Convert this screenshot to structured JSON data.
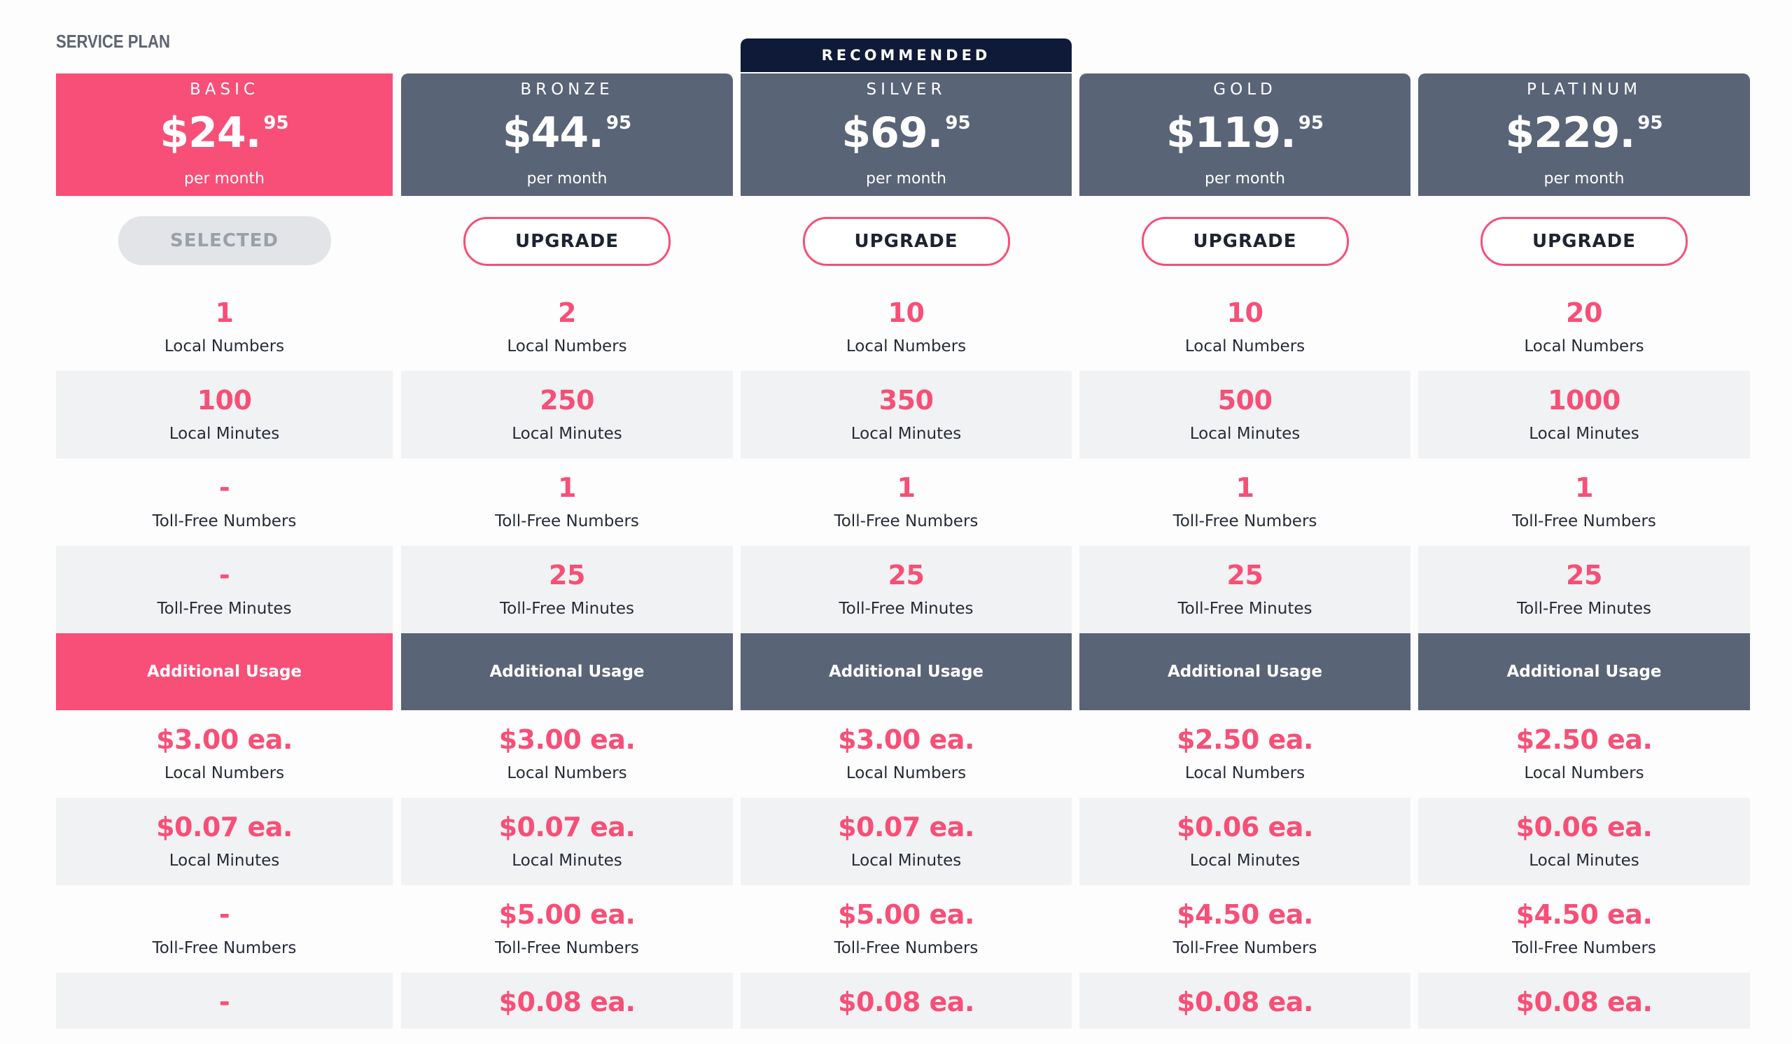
{
  "section_title": "SERVICE PLAN",
  "recommended_label": "RECOMMENDED",
  "per_month": "per month",
  "usage_header": "Additional Usage",
  "labels": {
    "local_numbers": "Local Numbers",
    "local_minutes": "Local Minutes",
    "toll_free_numbers": "Toll-Free Numbers",
    "toll_free_minutes": "Toll-Free Minutes"
  },
  "colors": {
    "accent": "#f74f77",
    "header": "#5a6477",
    "recommended": "#0e1a38",
    "row_alt": "#f1f2f3"
  },
  "plans": [
    {
      "name": "BASIC",
      "price_main": "$24.",
      "price_cents": "95",
      "button": "SELECTED",
      "selected": true,
      "local_numbers": "1",
      "local_minutes": "100",
      "toll_free_numbers": "-",
      "toll_free_minutes": "-",
      "usage_local_numbers": "$3.00 ea.",
      "usage_local_minutes": "$0.07 ea.",
      "usage_toll_free_numbers": "-",
      "usage_toll_free_minutes": "-"
    },
    {
      "name": "BRONZE",
      "price_main": "$44.",
      "price_cents": "95",
      "button": "UPGRADE",
      "selected": false,
      "local_numbers": "2",
      "local_minutes": "250",
      "toll_free_numbers": "1",
      "toll_free_minutes": "25",
      "usage_local_numbers": "$3.00 ea.",
      "usage_local_minutes": "$0.07 ea.",
      "usage_toll_free_numbers": "$5.00 ea.",
      "usage_toll_free_minutes": "$0.08 ea."
    },
    {
      "name": "SILVER",
      "price_main": "$69.",
      "price_cents": "95",
      "button": "UPGRADE",
      "selected": false,
      "local_numbers": "10",
      "local_minutes": "350",
      "toll_free_numbers": "1",
      "toll_free_minutes": "25",
      "usage_local_numbers": "$3.00 ea.",
      "usage_local_minutes": "$0.07 ea.",
      "usage_toll_free_numbers": "$5.00 ea.",
      "usage_toll_free_minutes": "$0.08 ea."
    },
    {
      "name": "GOLD",
      "price_main": "$119.",
      "price_cents": "95",
      "button": "UPGRADE",
      "selected": false,
      "local_numbers": "10",
      "local_minutes": "500",
      "toll_free_numbers": "1",
      "toll_free_minutes": "25",
      "usage_local_numbers": "$2.50 ea.",
      "usage_local_minutes": "$0.06 ea.",
      "usage_toll_free_numbers": "$4.50 ea.",
      "usage_toll_free_minutes": "$0.08 ea."
    },
    {
      "name": "PLATINUM",
      "price_main": "$229.",
      "price_cents": "95",
      "button": "UPGRADE",
      "selected": false,
      "local_numbers": "20",
      "local_minutes": "1000",
      "toll_free_numbers": "1",
      "toll_free_minutes": "25",
      "usage_local_numbers": "$2.50 ea.",
      "usage_local_minutes": "$0.06 ea.",
      "usage_toll_free_numbers": "$4.50 ea.",
      "usage_toll_free_minutes": "$0.08 ea."
    }
  ]
}
